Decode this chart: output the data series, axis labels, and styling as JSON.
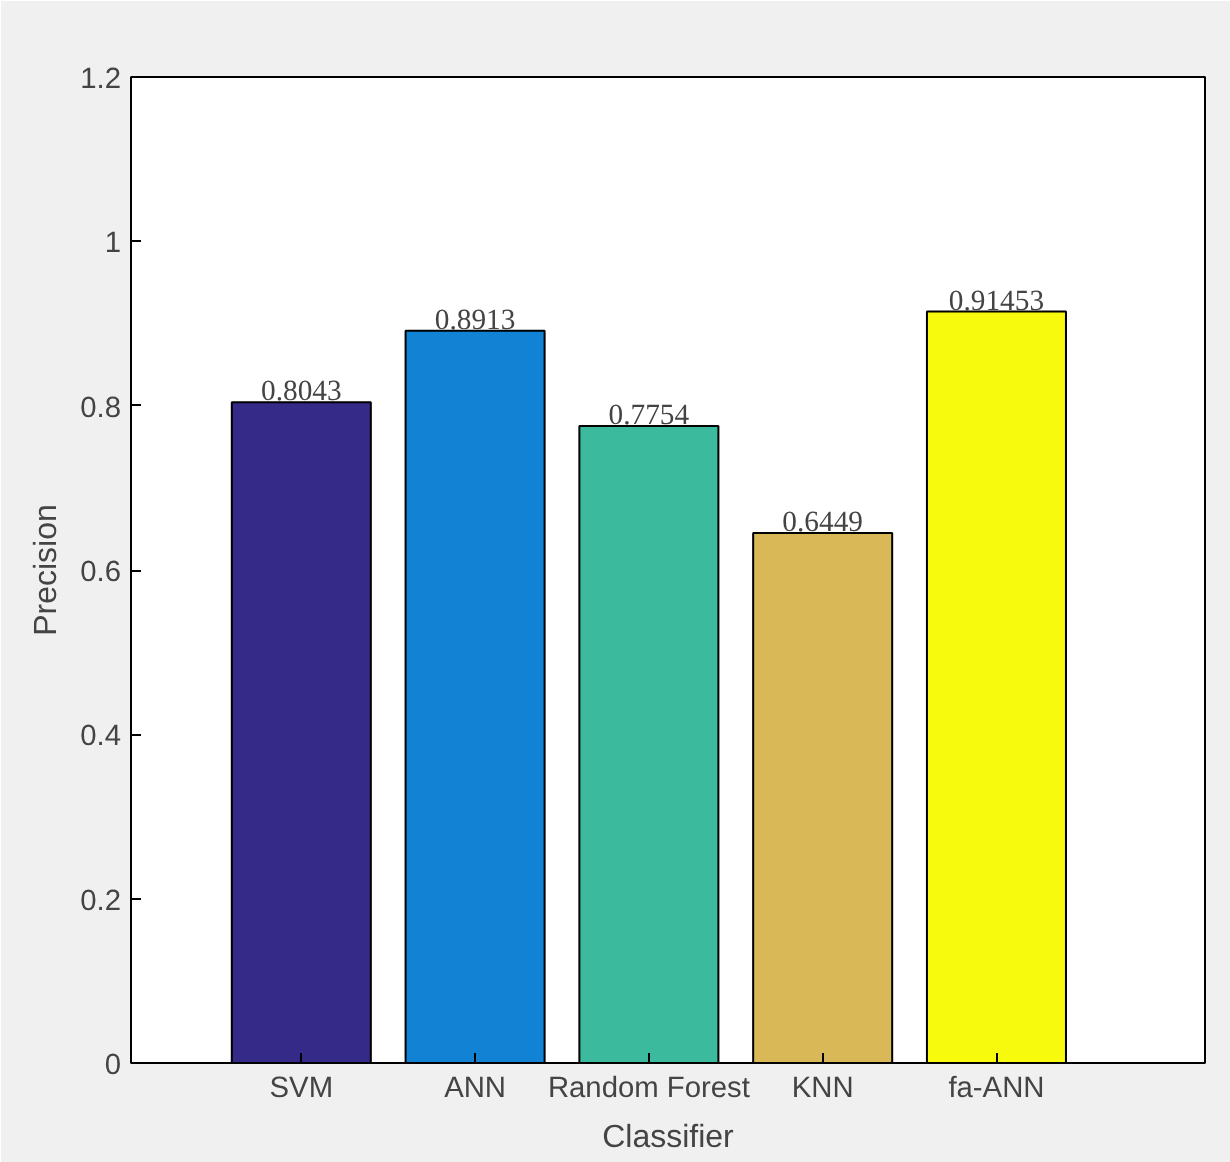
{
  "chart_data": {
    "type": "bar",
    "xlabel": "Classifier",
    "ylabel": "Precision",
    "categories": [
      "SVM",
      "ANN",
      "Random Forest",
      "KNN",
      "fa-ANN"
    ],
    "values": [
      0.8043,
      0.8913,
      0.7754,
      0.6449,
      0.91453
    ],
    "colors": [
      "#352a87",
      "#1283d4",
      "#3bba9d",
      "#d9b858",
      "#f8fa0d"
    ],
    "ylim": [
      0,
      1.2
    ],
    "yticks": [
      0,
      0.2,
      0.4,
      0.6,
      0.8,
      1,
      1.2
    ],
    "grid": false,
    "data_labels": true
  }
}
